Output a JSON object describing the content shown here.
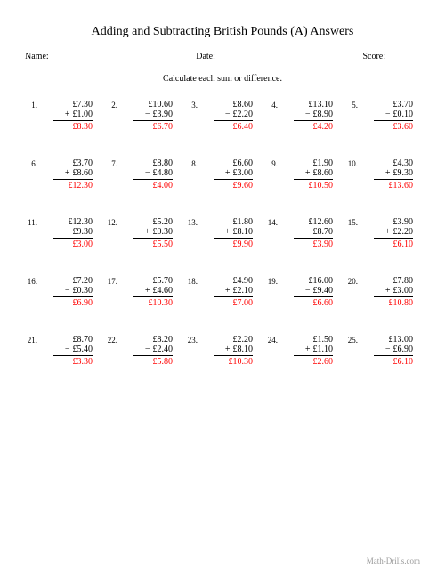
{
  "title": "Adding and Subtracting British Pounds (A) Answers",
  "meta": {
    "name_label": "Name:",
    "date_label": "Date:",
    "score_label": "Score:"
  },
  "instruction": "Calculate each sum or difference.",
  "currency": "£",
  "answer_color": "#ff0000",
  "problems": [
    {
      "n": "1.",
      "a": "7.30",
      "op": "+",
      "b": "1.00",
      "ans": "8.30"
    },
    {
      "n": "2.",
      "a": "10.60",
      "op": "−",
      "b": "3.90",
      "ans": "6.70"
    },
    {
      "n": "3.",
      "a": "8.60",
      "op": "−",
      "b": "2.20",
      "ans": "6.40"
    },
    {
      "n": "4.",
      "a": "13.10",
      "op": "−",
      "b": "8.90",
      "ans": "4.20"
    },
    {
      "n": "5.",
      "a": "3.70",
      "op": "−",
      "b": "0.10",
      "ans": "3.60"
    },
    {
      "n": "6.",
      "a": "3.70",
      "op": "+",
      "b": "8.60",
      "ans": "12.30"
    },
    {
      "n": "7.",
      "a": "8.80",
      "op": "−",
      "b": "4.80",
      "ans": "4.00"
    },
    {
      "n": "8.",
      "a": "6.60",
      "op": "+",
      "b": "3.00",
      "ans": "9.60"
    },
    {
      "n": "9.",
      "a": "1.90",
      "op": "+",
      "b": "8.60",
      "ans": "10.50"
    },
    {
      "n": "10.",
      "a": "4.30",
      "op": "+",
      "b": "9.30",
      "ans": "13.60"
    },
    {
      "n": "11.",
      "a": "12.30",
      "op": "−",
      "b": "9.30",
      "ans": "3.00"
    },
    {
      "n": "12.",
      "a": "5.20",
      "op": "+",
      "b": "0.30",
      "ans": "5.50"
    },
    {
      "n": "13.",
      "a": "1.80",
      "op": "+",
      "b": "8.10",
      "ans": "9.90"
    },
    {
      "n": "14.",
      "a": "12.60",
      "op": "−",
      "b": "8.70",
      "ans": "3.90"
    },
    {
      "n": "15.",
      "a": "3.90",
      "op": "+",
      "b": "2.20",
      "ans": "6.10"
    },
    {
      "n": "16.",
      "a": "7.20",
      "op": "−",
      "b": "0.30",
      "ans": "6.90"
    },
    {
      "n": "17.",
      "a": "5.70",
      "op": "+",
      "b": "4.60",
      "ans": "10.30"
    },
    {
      "n": "18.",
      "a": "4.90",
      "op": "+",
      "b": "2.10",
      "ans": "7.00"
    },
    {
      "n": "19.",
      "a": "16.00",
      "op": "−",
      "b": "9.40",
      "ans": "6.60"
    },
    {
      "n": "20.",
      "a": "7.80",
      "op": "+",
      "b": "3.00",
      "ans": "10.80"
    },
    {
      "n": "21.",
      "a": "8.70",
      "op": "−",
      "b": "5.40",
      "ans": "3.30"
    },
    {
      "n": "22.",
      "a": "8.20",
      "op": "−",
      "b": "2.40",
      "ans": "5.80"
    },
    {
      "n": "23.",
      "a": "2.20",
      "op": "+",
      "b": "8.10",
      "ans": "10.30"
    },
    {
      "n": "24.",
      "a": "1.50",
      "op": "+",
      "b": "1.10",
      "ans": "2.60"
    },
    {
      "n": "25.",
      "a": "13.00",
      "op": "−",
      "b": "6.90",
      "ans": "6.10"
    }
  ],
  "footer": "Math-Drills.com"
}
